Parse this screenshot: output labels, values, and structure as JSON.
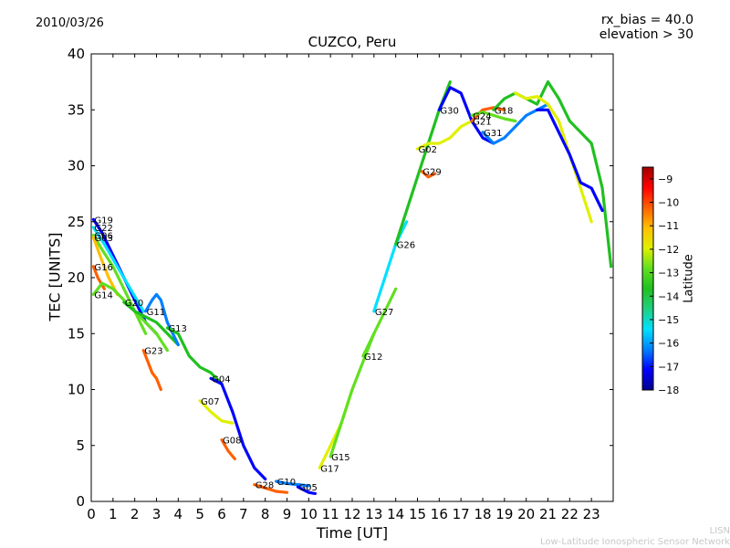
{
  "header": {
    "date": "2010/03/26",
    "rx_bias": "rx_bias = 40.0",
    "elevation": "elevation > 30"
  },
  "footer": {
    "credit_short": "LISN",
    "credit_long": "Low-Latitude Ionospheric Sensor Network"
  },
  "chart_data": {
    "type": "scatter",
    "title": "CUZCO, Peru",
    "xlabel": "Time [UT]",
    "ylabel": "TEC [UNITS]",
    "xlim": [
      0,
      24
    ],
    "ylim": [
      0,
      40
    ],
    "xticks": [
      0,
      1,
      2,
      3,
      4,
      5,
      6,
      7,
      8,
      9,
      10,
      11,
      12,
      13,
      14,
      15,
      16,
      17,
      18,
      19,
      20,
      21,
      22,
      23
    ],
    "yticks": [
      0,
      5,
      10,
      15,
      20,
      25,
      30,
      35,
      40
    ],
    "colorbar": {
      "label": "Latitude",
      "range": [
        -18,
        -8.5
      ],
      "ticks": [
        -9,
        -10,
        -11,
        -12,
        -13,
        -14,
        -15,
        -16,
        -17,
        -18
      ],
      "colormap": [
        "#00008f",
        "#0000ff",
        "#0080ff",
        "#00e0ff",
        "#20d080",
        "#20c020",
        "#60e020",
        "#e0f000",
        "#ffc000",
        "#ff6000",
        "#ff0000",
        "#a00000"
      ]
    },
    "series": [
      {
        "name": "G19",
        "lat": -17.5,
        "x": [
          0.1,
          0.5,
          1,
          1.5,
          2,
          2.5,
          3
        ],
        "y": [
          25.2,
          24,
          22,
          20,
          18,
          16,
          15
        ]
      },
      {
        "name": "G22",
        "lat": -15,
        "x": [
          0.1,
          0.6,
          1.2,
          1.8,
          2.4
        ],
        "y": [
          24.5,
          23,
          21,
          19,
          17
        ]
      },
      {
        "name": "G06",
        "lat": -12.5,
        "x": [
          0.1,
          0.5,
          1,
          1.5,
          2,
          2.5
        ],
        "y": [
          23.8,
          22.5,
          21,
          19,
          17,
          15
        ]
      },
      {
        "name": "G03",
        "lat": -11.5,
        "x": [
          0.1,
          0.4,
          0.8,
          1.2
        ],
        "y": [
          23.6,
          22,
          20,
          18.5
        ]
      },
      {
        "name": "G16",
        "lat": -10,
        "x": [
          0.1,
          0.3,
          0.6
        ],
        "y": [
          21,
          20,
          19
        ]
      },
      {
        "name": "G14",
        "lat": -13,
        "x": [
          0.1,
          0.5,
          1,
          1.5,
          2,
          2.5,
          3,
          3.5
        ],
        "y": [
          18.5,
          19.5,
          19,
          18,
          17,
          16,
          15,
          13.5
        ]
      },
      {
        "name": "G20",
        "lat": -14,
        "x": [
          1.5,
          2,
          2.5,
          3,
          3.5,
          4
        ],
        "y": [
          17.8,
          17,
          16.5,
          16,
          15,
          14
        ]
      },
      {
        "name": "G11",
        "lat": -16,
        "x": [
          2.5,
          2.8,
          3,
          3.2,
          3.5,
          4
        ],
        "y": [
          17,
          18,
          18.5,
          18,
          16,
          14
        ]
      },
      {
        "name": "G23",
        "lat": -10,
        "x": [
          2.4,
          2.6,
          2.8,
          3,
          3.2
        ],
        "y": [
          13.5,
          12.5,
          11.5,
          11,
          10
        ]
      },
      {
        "name": "G13",
        "lat": -14,
        "x": [
          3.5,
          4,
          4.5,
          5,
          5.5,
          6
        ],
        "y": [
          15.5,
          15,
          13,
          12,
          11.5,
          10.5
        ]
      },
      {
        "name": "G07",
        "lat": -12,
        "x": [
          5,
          5.5,
          6,
          6.5
        ],
        "y": [
          9,
          8,
          7.2,
          7
        ]
      },
      {
        "name": "G04",
        "lat": -17,
        "x": [
          5.5,
          6,
          6.5,
          7,
          7.5,
          8
        ],
        "y": [
          11,
          10.5,
          8,
          5,
          3,
          2
        ]
      },
      {
        "name": "G08",
        "lat": -10,
        "x": [
          6,
          6.3,
          6.6
        ],
        "y": [
          5.5,
          4.5,
          3.8
        ]
      },
      {
        "name": "G28",
        "lat": -10,
        "x": [
          7.5,
          8,
          8.5,
          9
        ],
        "y": [
          1.5,
          1.2,
          0.9,
          0.8
        ]
      },
      {
        "name": "G10",
        "lat": -16,
        "x": [
          8.5,
          9,
          9.5,
          10
        ],
        "y": [
          1.8,
          1.6,
          1.5,
          1.4
        ]
      },
      {
        "name": "G05",
        "lat": -17,
        "x": [
          9.5,
          10,
          10.3
        ],
        "y": [
          1.3,
          0.8,
          0.7
        ]
      },
      {
        "name": "G17",
        "lat": -12,
        "x": [
          10.5,
          11,
          11.5,
          12
        ],
        "y": [
          3,
          5,
          7,
          10
        ]
      },
      {
        "name": "G15",
        "lat": -12.5,
        "x": [
          11,
          11.5,
          12,
          12.5,
          13
        ],
        "y": [
          4,
          7,
          10,
          12.5,
          15
        ]
      },
      {
        "name": "G12",
        "lat": -13,
        "x": [
          12.5,
          13,
          13.5,
          14
        ],
        "y": [
          13,
          15,
          17,
          19
        ]
      },
      {
        "name": "G27",
        "lat": -15,
        "x": [
          13,
          13.5,
          14,
          14.5
        ],
        "y": [
          17,
          20,
          23,
          25
        ]
      },
      {
        "name": "G26",
        "lat": -14,
        "x": [
          14,
          14.5,
          15,
          15.5,
          16,
          16.5
        ],
        "y": [
          23,
          26,
          29,
          32,
          35,
          37.5
        ]
      },
      {
        "name": "G02",
        "lat": -12,
        "x": [
          15,
          15.5,
          16,
          16.5,
          17,
          17.5,
          18
        ],
        "y": [
          31.5,
          32,
          32,
          32.5,
          33.5,
          34,
          35
        ]
      },
      {
        "name": "G29",
        "lat": -10,
        "x": [
          15.2,
          15.5,
          15.8
        ],
        "y": [
          29.5,
          29,
          29.3
        ]
      },
      {
        "name": "G30",
        "lat": -17,
        "x": [
          16,
          16.5,
          17,
          17.5,
          18,
          18.5
        ],
        "y": [
          35,
          37,
          36.5,
          34,
          32.5,
          32
        ]
      },
      {
        "name": "G21",
        "lat": -10,
        "x": [
          17.5,
          18,
          18.5,
          19
        ],
        "y": [
          34,
          35,
          35.2,
          35
        ]
      },
      {
        "name": "G24",
        "lat": -13,
        "x": [
          17.5,
          18,
          18.5,
          19,
          19.5
        ],
        "y": [
          34.5,
          34.8,
          34.5,
          34.2,
          34
        ]
      },
      {
        "name": "G31",
        "lat": -16,
        "x": [
          18,
          18.5,
          19,
          19.5,
          20,
          20.5,
          21
        ],
        "y": [
          33,
          32,
          32.5,
          33.5,
          34.5,
          35,
          35.5
        ]
      },
      {
        "name": "G18",
        "lat": -14,
        "x": [
          18.5,
          19,
          19.5,
          20,
          20.5,
          21,
          21.5,
          22,
          22.5,
          23,
          23.5,
          23.9
        ],
        "y": [
          35,
          36,
          36.5,
          36,
          35.5,
          37.5,
          36,
          34,
          33,
          32,
          28,
          21
        ]
      },
      {
        "name": "",
        "lat": -12,
        "x": [
          19.5,
          20,
          20.5,
          21,
          21.5,
          22,
          22.5,
          23
        ],
        "y": [
          36.5,
          36,
          36.2,
          35.5,
          34,
          31,
          28,
          25
        ]
      },
      {
        "name": "",
        "lat": -17.5,
        "x": [
          20.5,
          21,
          21.5,
          22,
          22.5,
          23,
          23.5
        ],
        "y": [
          35,
          35,
          33,
          31,
          28.5,
          28,
          26
        ]
      }
    ]
  }
}
